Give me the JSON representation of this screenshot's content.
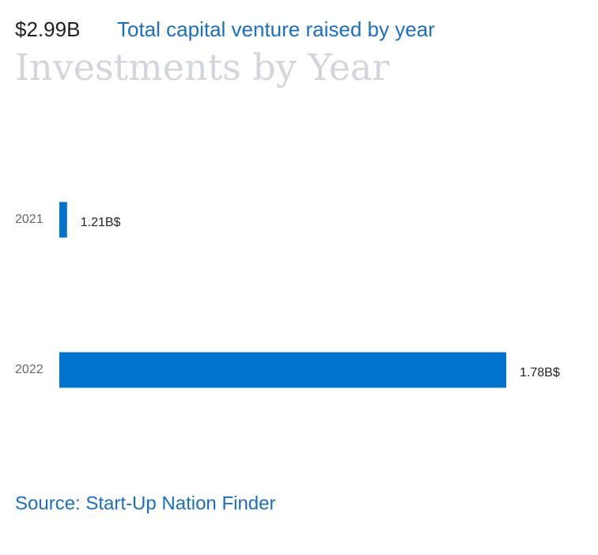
{
  "chart_data": {
    "type": "bar",
    "orientation": "horizontal",
    "kpi": "$2.99B",
    "subtitle": "Total capital venture raised by year",
    "title": "Investments by Year",
    "categories": [
      "2021",
      "2022"
    ],
    "values": [
      1.21,
      1.78
    ],
    "value_labels": [
      "1.21B$",
      "1.78B$"
    ],
    "color": "#0073cf",
    "xlim": [
      1.2,
      1.78
    ],
    "source": "Source: Start-Up Nation Finder"
  }
}
